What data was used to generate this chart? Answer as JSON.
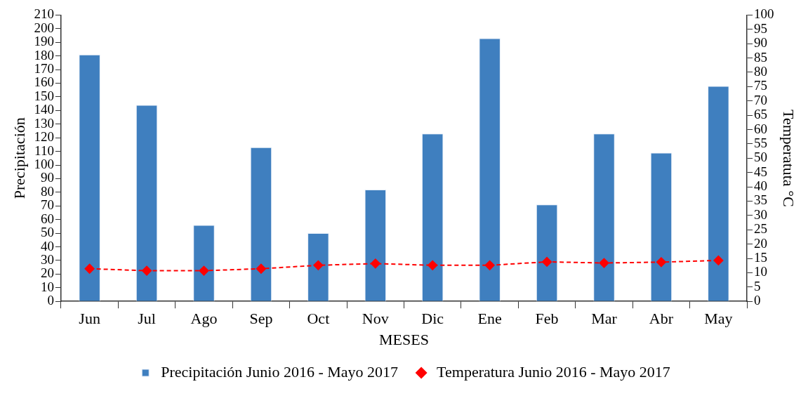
{
  "chart_data": {
    "type": "bar",
    "xlabel": "MESES",
    "ylabel": "Precipitación",
    "y2label": "Temperatuta °C",
    "categories": [
      "Jun",
      "Jul",
      "Ago",
      "Sep",
      "Oct",
      "Nov",
      "Dic",
      "Ene",
      "Feb",
      "Mar",
      "Abr",
      "May"
    ],
    "series": [
      {
        "name": "Precipitación Junio 2016 - Mayo 2017",
        "color": "#3f7fbf",
        "values": [
          181,
          144,
          56,
          113,
          50,
          82,
          123,
          193,
          71,
          123,
          109,
          158
        ]
      },
      {
        "name": "Temperatura Junio 2016 - Mayo 2017",
        "type": "line",
        "axis": "y2",
        "color": "#ff0000",
        "marker": "diamond",
        "line_style": "dashed",
        "values": [
          11.4,
          10.7,
          10.7,
          11.4,
          12.6,
          13.2,
          12.6,
          12.6,
          13.8,
          13.4,
          13.7,
          14.3
        ]
      }
    ],
    "ylim": [
      0,
      210
    ],
    "yticks": [
      0,
      10,
      20,
      30,
      40,
      50,
      60,
      70,
      80,
      90,
      100,
      110,
      120,
      130,
      140,
      150,
      160,
      170,
      180,
      190,
      200,
      210
    ],
    "y2lim": [
      0,
      100
    ],
    "y2ticks": [
      0,
      5,
      10,
      15,
      20,
      25,
      30,
      35,
      40,
      45,
      50,
      55,
      60,
      65,
      70,
      75,
      80,
      85,
      90,
      95,
      100
    ],
    "grid": false,
    "legend": "bottom"
  }
}
